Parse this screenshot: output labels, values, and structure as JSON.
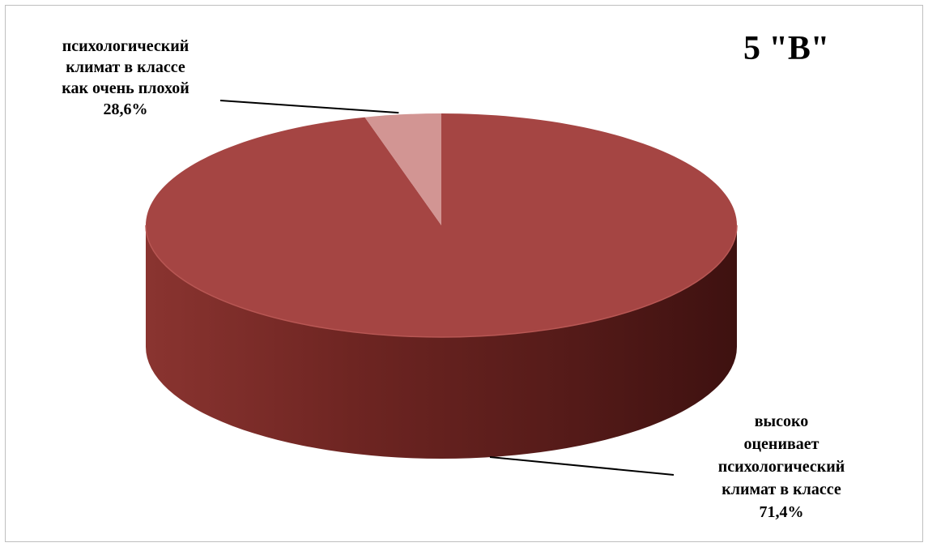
{
  "chart_data": {
    "type": "pie",
    "title": "5 \"В\"",
    "three_d": true,
    "slices": [
      {
        "label_lines": [
          "высоко",
          "оценивает",
          "психологический",
          "климат в классе"
        ],
        "value_label": "71,4%",
        "value": 71.4,
        "color": "#A54543"
      },
      {
        "label_lines": [
          "психологический",
          "климат в классе",
          "как очень плохой"
        ],
        "value_label": "28,6%",
        "value": 28.6,
        "color": "#D29593"
      }
    ]
  }
}
